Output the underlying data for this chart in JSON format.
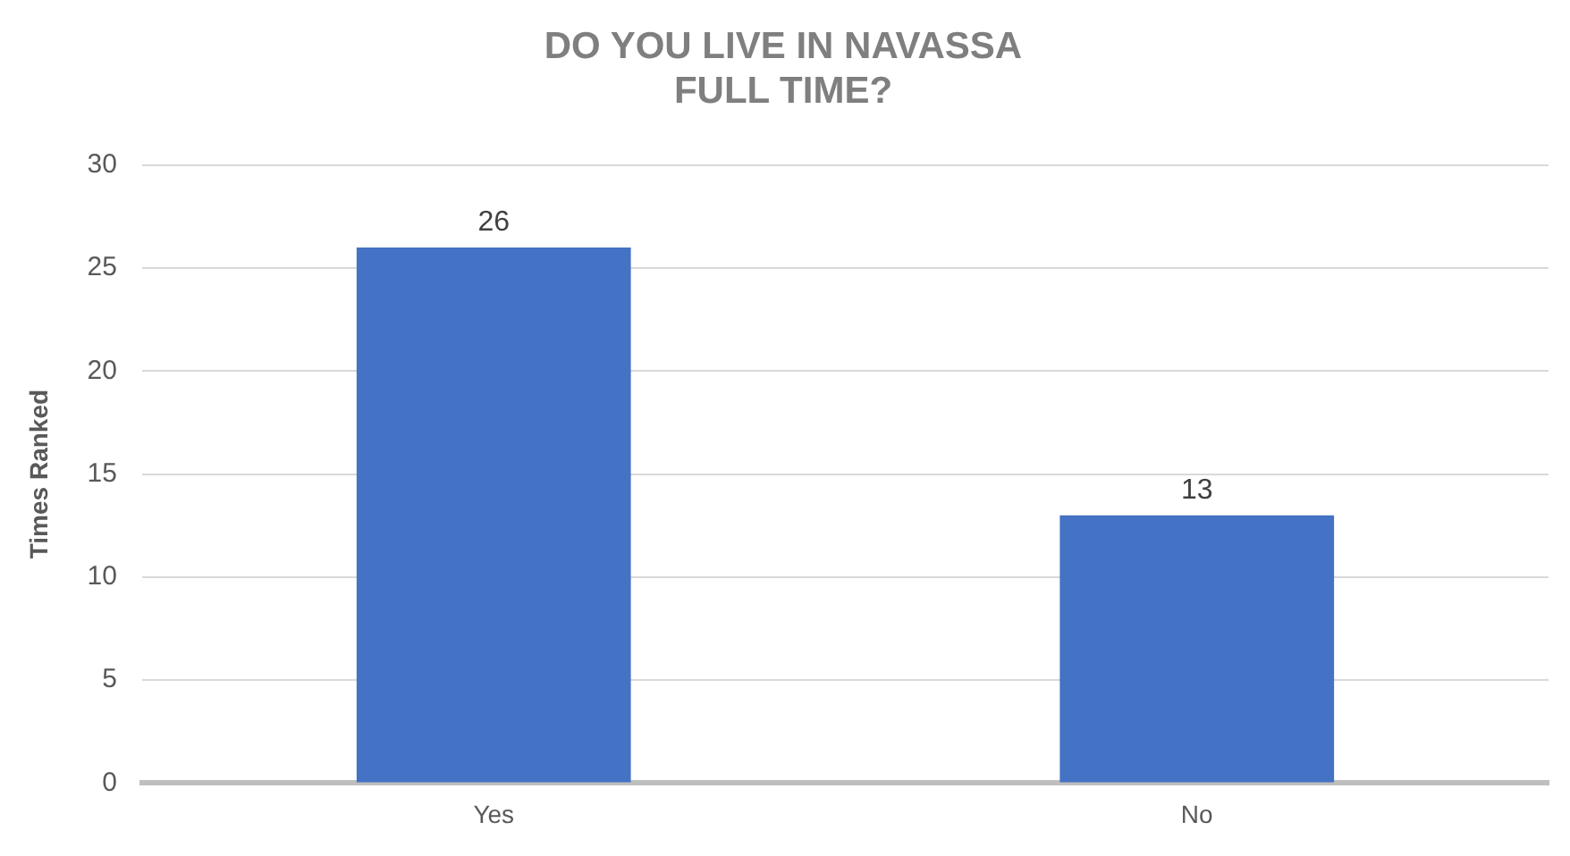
{
  "chart_data": {
    "type": "bar",
    "title": "DO YOU LIVE IN NAVASSA FULL TIME?",
    "ylabel": "Times Ranked",
    "categories": [
      "Yes",
      "No"
    ],
    "values": [
      26,
      13
    ],
    "color": "#4472c4",
    "ylim": [
      0,
      30
    ],
    "yticks": [
      0,
      5,
      10,
      15,
      20,
      25,
      30
    ],
    "grid": "y",
    "data_labels": true,
    "legend": false
  }
}
